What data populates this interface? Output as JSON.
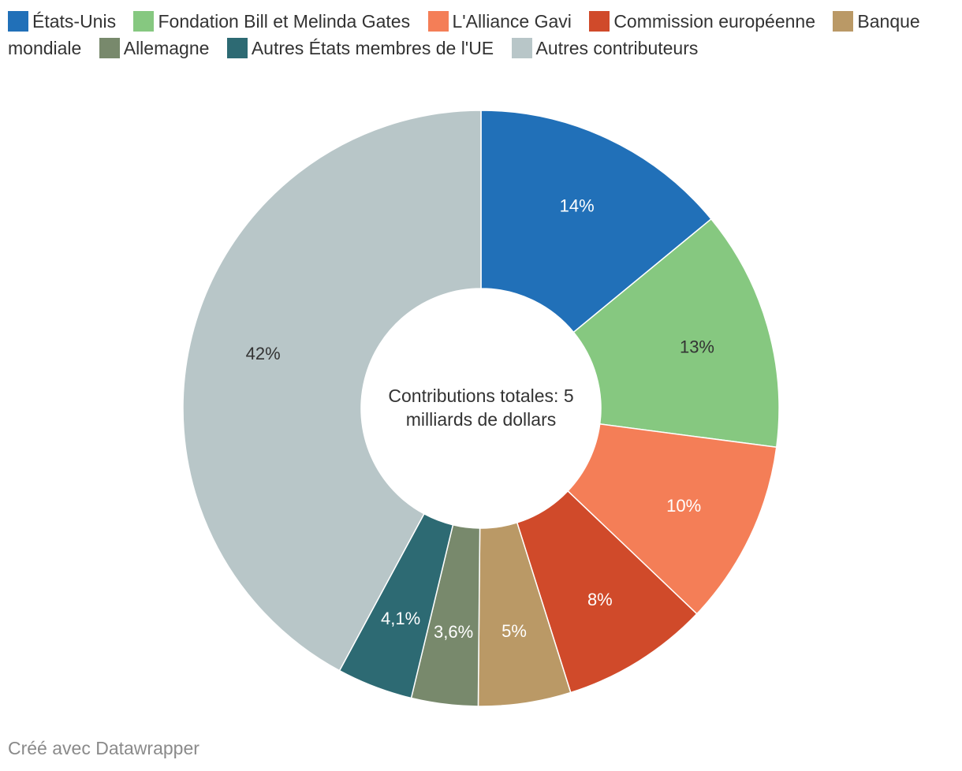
{
  "chart_data": {
    "type": "pie",
    "donut": true,
    "center_label": [
      "Contributions totales: 5",
      "milliards de dollars"
    ],
    "legend_position": "top",
    "slices": [
      {
        "name": "États-Unis",
        "value": 14,
        "label": "14%",
        "color": "#2170b8",
        "label_color": "#ffffff"
      },
      {
        "name": "Fondation Bill et Melinda Gates",
        "value": 13,
        "label": "13%",
        "color": "#86c880",
        "label_color": "#333333"
      },
      {
        "name": "L'Alliance Gavi",
        "value": 10,
        "label": "10%",
        "color": "#f47e57",
        "label_color": "#ffffff"
      },
      {
        "name": "Commission européenne",
        "value": 8,
        "label": "8%",
        "color": "#d04a2a",
        "label_color": "#ffffff"
      },
      {
        "name": "Banque mondiale",
        "value": 5,
        "label": "5%",
        "color": "#ba9966",
        "label_color": "#ffffff"
      },
      {
        "name": "Allemagne",
        "value": 3.6,
        "label": "3,6%",
        "color": "#78896c",
        "label_color": "#ffffff"
      },
      {
        "name": "Autres États membres de l'UE",
        "value": 4.1,
        "label": "4,1%",
        "color": "#2d6a73",
        "label_color": "#ffffff"
      },
      {
        "name": "Autres contributeurs",
        "value": 42,
        "label": "42%",
        "color": "#b8c6c8",
        "label_color": "#333333"
      }
    ]
  },
  "legend": {
    "banque_part1": "Banque",
    "banque_part2": "mondiale"
  },
  "footer": "Créé avec Datawrapper"
}
